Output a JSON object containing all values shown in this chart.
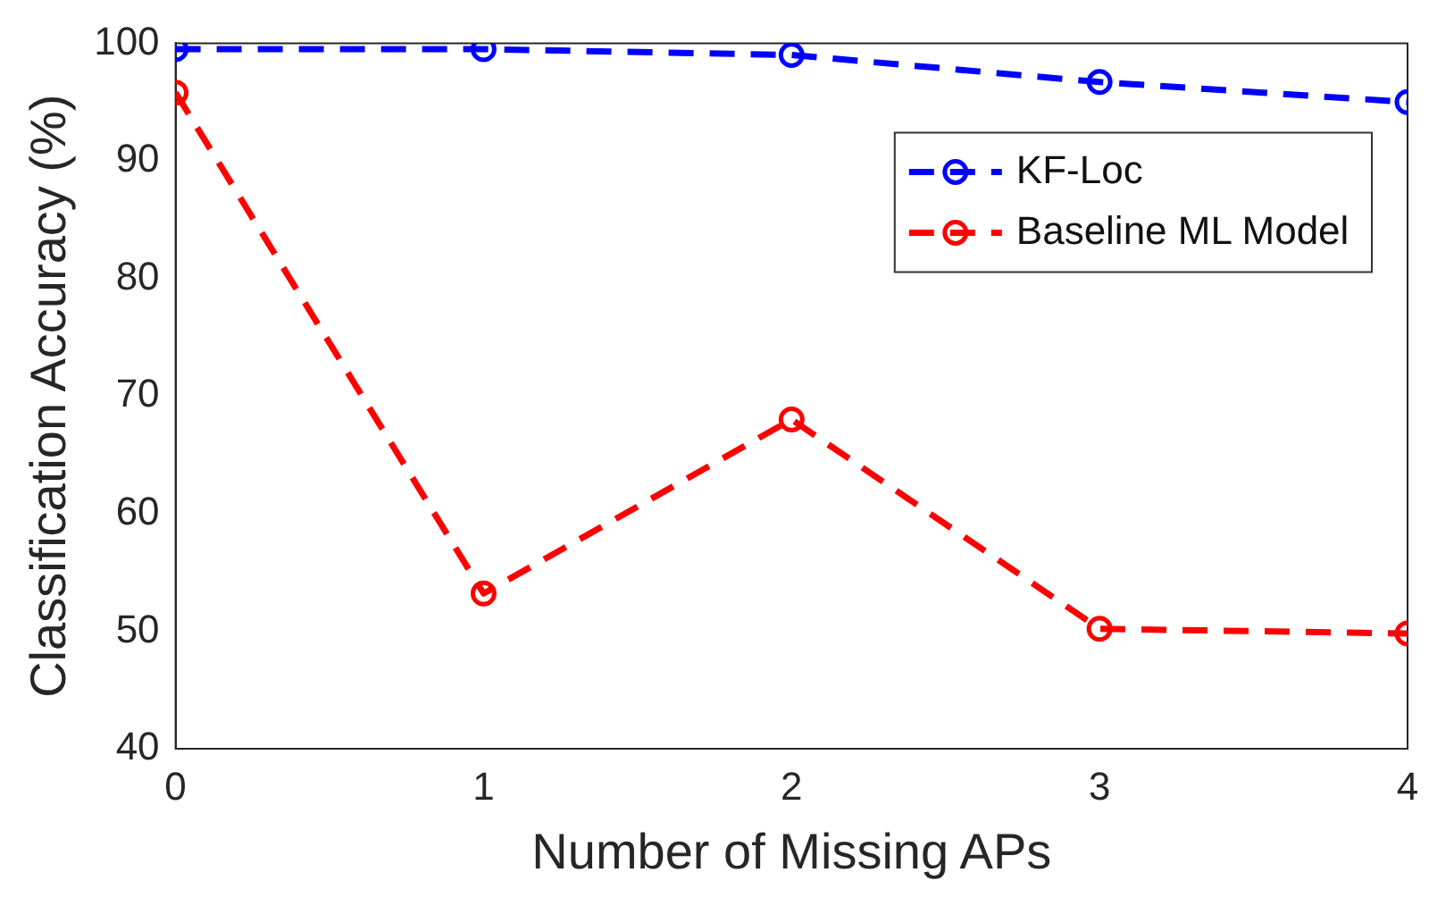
{
  "chart_data": {
    "type": "line",
    "xlabel": "Number of Missing APs",
    "ylabel": "Classification Accuracy (%)",
    "x": [
      0,
      1,
      2,
      3,
      4
    ],
    "xlim": [
      0,
      4
    ],
    "xticks": [
      0,
      1,
      2,
      3,
      4
    ],
    "ylim": [
      40,
      100
    ],
    "yticks": [
      40,
      50,
      60,
      70,
      80,
      90,
      100
    ],
    "grid": false,
    "legend": "top right",
    "marker": "circle",
    "line_style": "dashed",
    "series": [
      {
        "name": "KF-Loc",
        "color": "#0000ff",
        "values": [
          99.5,
          99.5,
          99,
          96.7,
          95
        ]
      },
      {
        "name": "Baseline ML Model",
        "color": "#ff0000",
        "values": [
          95.8,
          53.2,
          68,
          50.2,
          49.8
        ]
      }
    ]
  }
}
